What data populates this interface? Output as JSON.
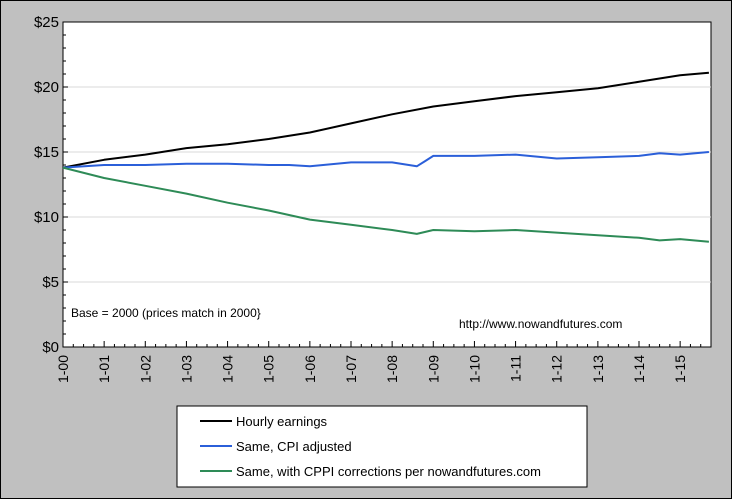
{
  "chart_data": {
    "type": "line",
    "ylim": [
      0,
      25
    ],
    "y_ticks": [
      "$0",
      "$5",
      "$10",
      "$15",
      "$20",
      "$25"
    ],
    "y_tick_values": [
      0,
      5,
      10,
      15,
      20,
      25
    ],
    "x_ticks": [
      "1-00",
      "1-01",
      "1-02",
      "1-03",
      "1-04",
      "1-05",
      "1-06",
      "1-07",
      "1-08",
      "1-09",
      "1-10",
      "1-11",
      "1-12",
      "1-13",
      "1-14",
      "1-15"
    ],
    "x_tick_years": [
      2000,
      2001,
      2002,
      2003,
      2004,
      2005,
      2006,
      2007,
      2008,
      2009,
      2010,
      2011,
      2012,
      2013,
      2014,
      2015
    ],
    "xlim": [
      2000.0,
      2015.75
    ],
    "grid": true,
    "legend_position": "bottom",
    "annotations": {
      "base_note": "Base = 2000 (prices match in 2000}",
      "source_url": "http://www.nowandfutures.com"
    },
    "series": [
      {
        "name": "Hourly earnings",
        "color": "#000000",
        "x": [
          2000.0,
          2001.0,
          2002.0,
          2003.0,
          2004.0,
          2005.0,
          2006.0,
          2007.0,
          2008.0,
          2009.0,
          2010.0,
          2011.0,
          2012.0,
          2013.0,
          2014.0,
          2015.0,
          2015.7
        ],
        "y": [
          13.8,
          14.4,
          14.8,
          15.3,
          15.6,
          16.0,
          16.5,
          17.2,
          17.9,
          18.5,
          18.9,
          19.3,
          19.6,
          19.9,
          20.4,
          20.9,
          21.1
        ]
      },
      {
        "name": "Same, CPI adjusted",
        "color": "#2b5fd9",
        "x": [
          2000.0,
          2001.0,
          2002.0,
          2003.0,
          2004.0,
          2005.0,
          2005.5,
          2006.0,
          2007.0,
          2008.0,
          2008.6,
          2008.8,
          2009.0,
          2010.0,
          2011.0,
          2012.0,
          2013.0,
          2014.0,
          2014.5,
          2015.0,
          2015.7
        ],
        "y": [
          13.8,
          14.0,
          14.0,
          14.1,
          14.1,
          14.0,
          14.0,
          13.9,
          14.2,
          14.2,
          13.9,
          14.3,
          14.7,
          14.7,
          14.8,
          14.5,
          14.6,
          14.7,
          14.9,
          14.8,
          15.0
        ]
      },
      {
        "name": "Same, with CPPI corrections per nowandfutures.com",
        "color": "#2e8b57",
        "x": [
          2000.0,
          2001.0,
          2002.0,
          2003.0,
          2004.0,
          2005.0,
          2006.0,
          2007.0,
          2008.0,
          2008.6,
          2009.0,
          2010.0,
          2011.0,
          2012.0,
          2013.0,
          2014.0,
          2014.5,
          2015.0,
          2015.7
        ],
        "y": [
          13.8,
          13.0,
          12.4,
          11.8,
          11.1,
          10.5,
          9.8,
          9.4,
          9.0,
          8.7,
          9.0,
          8.9,
          9.0,
          8.8,
          8.6,
          8.4,
          8.2,
          8.3,
          8.1
        ]
      }
    ]
  }
}
